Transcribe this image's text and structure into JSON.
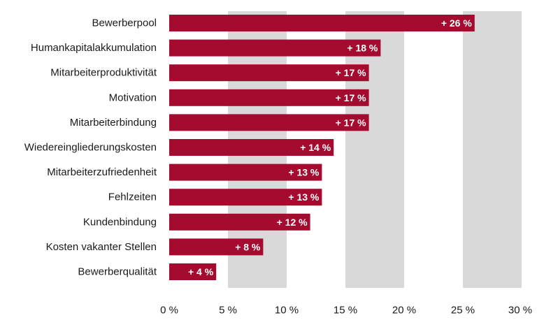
{
  "chart_data": {
    "type": "bar",
    "orientation": "horizontal",
    "title": "",
    "xlabel": "",
    "ylabel": "",
    "xlim": [
      0,
      30
    ],
    "categories": [
      "Bewerberpool",
      "Humankapitalakkumulation",
      "Mitarbeiterproduktivität",
      "Motivation",
      "Mitarbeiterbindung",
      "Wiedereingliederungskosten",
      "Mitarbeiterzufriedenheit",
      "Fehlzeiten",
      "Kundenbindung",
      "Kosten vakanter Stellen",
      "Bewerberqualität"
    ],
    "values": [
      26,
      18,
      17,
      17,
      17,
      14,
      13,
      13,
      12,
      8,
      4
    ],
    "data_labels": [
      "+ 26 %",
      "+ 18 %",
      "+ 17 %",
      "+ 17 %",
      "+ 17 %",
      "+ 14 %",
      "+ 13 %",
      "+ 13 %",
      "+ 12 %",
      "+ 8 %",
      "+ 4 %"
    ],
    "x_ticks": [
      {
        "value": 0,
        "label": "0 %"
      },
      {
        "value": 5,
        "label": "5 %"
      },
      {
        "value": 10,
        "label": "10 %"
      },
      {
        "value": 15,
        "label": "15 %"
      },
      {
        "value": 20,
        "label": "20 %"
      },
      {
        "value": 25,
        "label": "25 %"
      },
      {
        "value": 30,
        "label": "30 %"
      }
    ],
    "background_bands": [
      [
        5,
        10
      ],
      [
        15,
        20
      ],
      [
        25,
        30
      ]
    ],
    "grid": false,
    "legend": "none",
    "colors": {
      "bar": "#a50b2e",
      "band": "#d9d9d9",
      "value_text": "#ffffff",
      "label_text": "#1a1a1a"
    }
  }
}
